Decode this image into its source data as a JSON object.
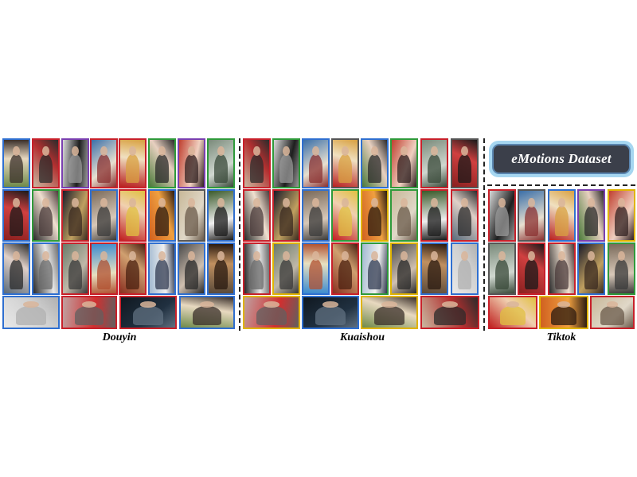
{
  "figure": {
    "title": "eMotions Dataset",
    "platforms": [
      {
        "label": "Douyin"
      },
      {
        "label": "Kuaishou"
      },
      {
        "label": "Tiktok"
      }
    ],
    "frame_colors": {
      "blue": "#2f6fd0",
      "red": "#c8202a",
      "green": "#2e9a3a",
      "yellow": "#e0b400",
      "purple": "#7a3fb0",
      "gray": "#555555"
    },
    "thumbnail_count": 81
  }
}
